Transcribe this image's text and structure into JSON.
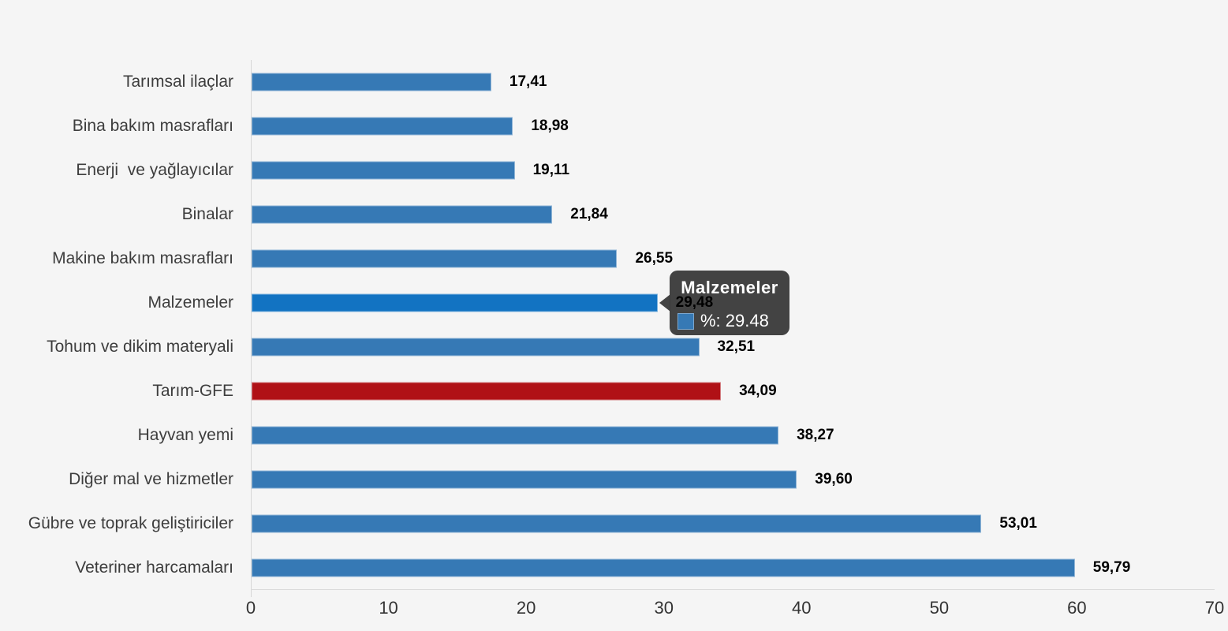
{
  "page": {
    "background": "#f5f5f5"
  },
  "chart_data": {
    "type": "bar",
    "orientation": "horizontal",
    "title": "",
    "xlabel": "",
    "ylabel": "",
    "grid": false,
    "legend": "none",
    "categories": [
      "Tarımsal ilaçlar",
      "Bina bakım masrafları",
      "Enerji  ve yağlayıcılar",
      "Binalar",
      "Makine bakım masrafları",
      "Malzemeler",
      "Tohum ve dikim materyali",
      "Tarım-GFE",
      "Hayvan yemi",
      "Diğer mal ve hizmetler",
      "Gübre ve toprak geliştiriciler",
      "Veteriner harcamaları"
    ],
    "values": [
      17.41,
      18.98,
      19.11,
      21.84,
      26.55,
      29.48,
      32.51,
      34.09,
      38.27,
      39.6,
      53.01,
      59.79
    ],
    "value_labels": [
      "17,41",
      "18,98",
      "19,11",
      "21,84",
      "26,55",
      "29,48",
      "32,51",
      "34,09",
      "38,27",
      "39,60",
      "53,01",
      "59,79"
    ],
    "bar_colors": [
      "#3679b5",
      "#3679b5",
      "#3679b5",
      "#3679b5",
      "#3679b5",
      "#1273c2",
      "#3679b5",
      "#b01116",
      "#3679b5",
      "#3679b5",
      "#3679b5",
      "#3679b5"
    ],
    "default_color": "#3679b5",
    "highlight_color": "#1273c2",
    "accent_color": "#b01116",
    "xlim": [
      0,
      70
    ],
    "xticks": [
      "0",
      "10",
      "20",
      "30",
      "40",
      "50",
      "60",
      "70"
    ],
    "tooltip": {
      "bar_index": 5,
      "title": "Malzemeler",
      "text": "%: 29.48",
      "swatch_color": "#3679b5",
      "background": "#3b3b3b"
    }
  }
}
